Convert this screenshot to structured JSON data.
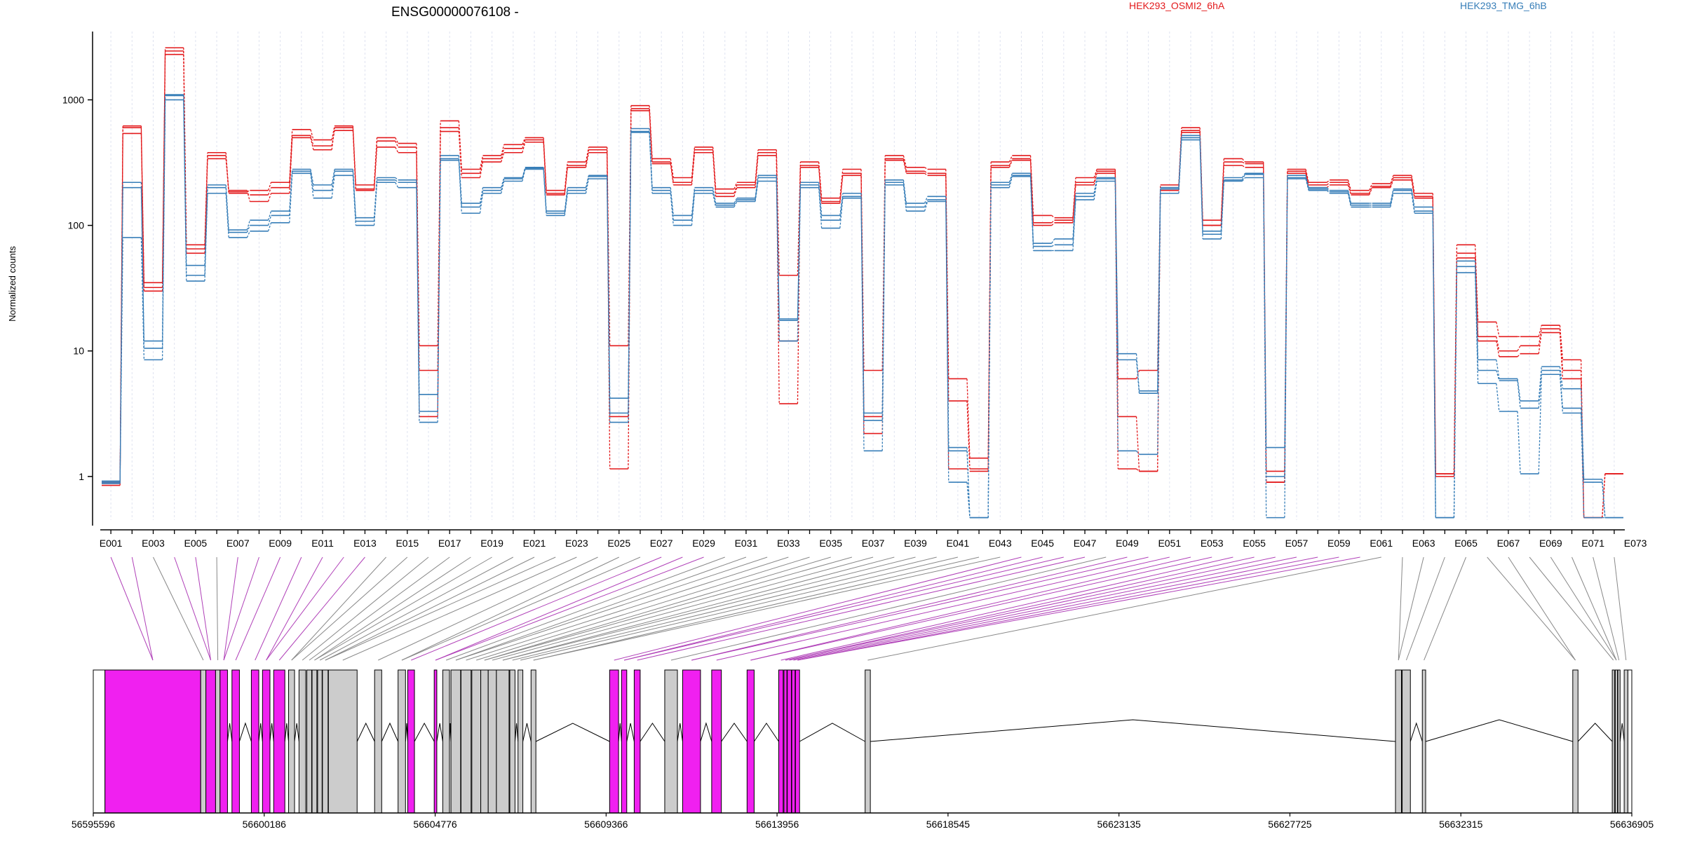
{
  "chart_data": {
    "type": "line",
    "title": "ENSG00000076108 -",
    "ylabel": "Normalized counts",
    "y_scale": "log",
    "ylim": [
      0.45,
      3500
    ],
    "y_ticks": [
      {
        "value": 1,
        "label": "1"
      },
      {
        "value": 10,
        "label": "10"
      },
      {
        "value": 100,
        "label": "100"
      },
      {
        "value": 1000,
        "label": "1000"
      }
    ],
    "legend": [
      {
        "name": "HEK293_OSMI2_6hA",
        "color": "#e31a1c"
      },
      {
        "name": "HEK293_TMG_6hB",
        "color": "#377eb8"
      }
    ],
    "exon_labels": [
      "E001",
      "E003",
      "E005",
      "E007",
      "E009",
      "E011",
      "E013",
      "E015",
      "E017",
      "E019",
      "E021",
      "E023",
      "E025",
      "E027",
      "E029",
      "E031",
      "E033",
      "E035",
      "E037",
      "E039",
      "E041",
      "E043",
      "E045",
      "E047",
      "E049",
      "E051",
      "E053",
      "E055",
      "E057",
      "E059",
      "E061",
      "E063",
      "E065",
      "E067",
      "E069",
      "E071",
      "E073"
    ],
    "series": [
      {
        "group": "HEK293_OSMI2_6hA",
        "values": [
          0.9,
          620,
          35,
          2600,
          70,
          380,
          185,
          190,
          220,
          580,
          480,
          620,
          210,
          500,
          450,
          11,
          680,
          280,
          360,
          440,
          500,
          190,
          320,
          420,
          11,
          900,
          340,
          240,
          420,
          195,
          220,
          400,
          40,
          320,
          165,
          280,
          7,
          360,
          290,
          280,
          6,
          1.4,
          320,
          360,
          120,
          115,
          240,
          280,
          6,
          7,
          210,
          600,
          110,
          340,
          320,
          1.1,
          280,
          220,
          230,
          190,
          215,
          250,
          180,
          1.05,
          70,
          17,
          13,
          13,
          16,
          8.5,
          0.47,
          1.05
        ]
      },
      {
        "group": "HEK293_OSMI2_6hA",
        "values": [
          0.88,
          540,
          32,
          2450,
          65,
          360,
          180,
          175,
          200,
          520,
          430,
          570,
          195,
          470,
          420,
          7,
          600,
          260,
          340,
          410,
          480,
          180,
          300,
          400,
          3,
          850,
          320,
          220,
          400,
          180,
          210,
          380,
          12,
          300,
          155,
          260,
          3,
          340,
          270,
          260,
          4,
          1.15,
          300,
          340,
          105,
          110,
          220,
          270,
          3,
          1.1,
          200,
          570,
          100,
          320,
          310,
          0.9,
          270,
          210,
          220,
          180,
          205,
          240,
          170,
          1.05,
          60,
          13,
          10,
          11,
          15,
          7,
          0.47,
          1.05
        ]
      },
      {
        "group": "HEK293_OSMI2_6hA",
        "values": [
          0.85,
          600,
          30,
          2300,
          60,
          340,
          190,
          155,
          180,
          500,
          400,
          600,
          190,
          420,
          380,
          3,
          560,
          240,
          320,
          380,
          460,
          175,
          290,
          380,
          1.15,
          820,
          310,
          210,
          380,
          170,
          200,
          360,
          3.8,
          290,
          150,
          250,
          2.2,
          330,
          260,
          250,
          1.15,
          1.1,
          290,
          330,
          100,
          105,
          210,
          260,
          1.15,
          1.1,
          190,
          550,
          100,
          300,
          290,
          0.9,
          260,
          200,
          210,
          175,
          200,
          230,
          165,
          1.0,
          55,
          12,
          9,
          9.5,
          14,
          6,
          0.47,
          1.05
        ]
      },
      {
        "group": "HEK293_TMG_6hB",
        "values": [
          0.92,
          220,
          12,
          1100,
          48,
          210,
          92,
          110,
          130,
          280,
          210,
          280,
          115,
          240,
          230,
          4.5,
          360,
          150,
          200,
          240,
          290,
          130,
          200,
          250,
          4.2,
          590,
          200,
          120,
          200,
          150,
          165,
          250,
          18,
          220,
          120,
          180,
          3.2,
          230,
          150,
          170,
          1.7,
          0.47,
          220,
          260,
          72,
          78,
          180,
          240,
          9.5,
          4.8,
          200,
          520,
          90,
          240,
          260,
          1.7,
          250,
          200,
          190,
          150,
          150,
          195,
          140,
          0.47,
          52,
          8.5,
          6,
          4,
          7.5,
          5,
          0.95,
          0.47
        ]
      },
      {
        "group": "HEK293_TMG_6hB",
        "values": [
          0.9,
          200,
          10.5,
          1080,
          40,
          200,
          88,
          100,
          120,
          270,
          190,
          270,
          108,
          230,
          220,
          3.3,
          340,
          140,
          190,
          235,
          285,
          125,
          190,
          245,
          3.2,
          560,
          190,
          110,
          190,
          145,
          160,
          240,
          17.5,
          210,
          110,
          170,
          2.8,
          220,
          140,
          160,
          1.6,
          0.47,
          210,
          250,
          68,
          70,
          170,
          235,
          8.5,
          4.6,
          195,
          500,
          85,
          230,
          255,
          1.0,
          240,
          195,
          185,
          145,
          145,
          190,
          130,
          0.47,
          47,
          7,
          5.8,
          3.5,
          7,
          3.5,
          0.9,
          0.47
        ]
      },
      {
        "group": "HEK293_TMG_6hB",
        "values": [
          0.88,
          80,
          8.5,
          1000,
          36,
          180,
          80,
          90,
          105,
          260,
          165,
          250,
          100,
          220,
          200,
          2.7,
          330,
          125,
          180,
          225,
          280,
          120,
          180,
          235,
          2.7,
          550,
          180,
          100,
          180,
          140,
          155,
          225,
          12,
          200,
          95,
          165,
          1.6,
          210,
          130,
          155,
          0.9,
          0.47,
          200,
          245,
          63,
          63,
          160,
          225,
          1.6,
          1.5,
          180,
          480,
          78,
          225,
          240,
          0.47,
          235,
          190,
          180,
          140,
          140,
          180,
          125,
          0.47,
          42,
          5.5,
          3.3,
          1.05,
          6.5,
          3.2,
          0.47,
          0.47
        ]
      }
    ],
    "x_ticks": [
      "56595596",
      "56600186",
      "56604776",
      "56609366",
      "56613956",
      "56618545",
      "56623135",
      "56627725",
      "56632315",
      "56636905"
    ],
    "gene_range": [
      56595596,
      56636905
    ],
    "exons": [
      {
        "start": 56595596,
        "end": 56595910,
        "color": "#ffffff"
      },
      {
        "start": 56595910,
        "end": 56598480,
        "color": "#f020f0"
      },
      {
        "start": 56598480,
        "end": 56598620,
        "color": "#cccccc"
      },
      {
        "start": 56598620,
        "end": 56598880,
        "color": "#f020f0"
      },
      {
        "start": 56598880,
        "end": 56599000,
        "color": "#cccccc"
      },
      {
        "start": 56599000,
        "end": 56599200,
        "color": "#f020f0"
      },
      {
        "start": 56599320,
        "end": 56599520,
        "color": "#f020f0"
      },
      {
        "start": 56599840,
        "end": 56600040,
        "color": "#f020f0"
      },
      {
        "start": 56600140,
        "end": 56600340,
        "color": "#f020f0"
      },
      {
        "start": 56600440,
        "end": 56600740,
        "color": "#f020f0"
      },
      {
        "start": 56600840,
        "end": 56601000,
        "color": "#cccccc"
      },
      {
        "start": 56601120,
        "end": 56601300,
        "color": "#cccccc"
      },
      {
        "start": 56601330,
        "end": 56601460,
        "color": "#cccccc"
      },
      {
        "start": 56601470,
        "end": 56601600,
        "color": "#cccccc"
      },
      {
        "start": 56601620,
        "end": 56601740,
        "color": "#cccccc"
      },
      {
        "start": 56601750,
        "end": 56601900,
        "color": "#cccccc"
      },
      {
        "start": 56601910,
        "end": 56602680,
        "color": "#cccccc"
      },
      {
        "start": 56603150,
        "end": 56603340,
        "color": "#cccccc"
      },
      {
        "start": 56603780,
        "end": 56603980,
        "color": "#cccccc"
      },
      {
        "start": 56604040,
        "end": 56604220,
        "color": "#f020f0"
      },
      {
        "start": 56604750,
        "end": 56604820,
        "color": "#f020f0"
      },
      {
        "start": 56604980,
        "end": 56605160,
        "color": "#cccccc"
      },
      {
        "start": 56605200,
        "end": 56605460,
        "color": "#cccccc"
      },
      {
        "start": 56605470,
        "end": 56605740,
        "color": "#cccccc"
      },
      {
        "start": 56605760,
        "end": 56606000,
        "color": "#cccccc"
      },
      {
        "start": 56606000,
        "end": 56606200,
        "color": "#cccccc"
      },
      {
        "start": 56606200,
        "end": 56606420,
        "color": "#cccccc"
      },
      {
        "start": 56606420,
        "end": 56606760,
        "color": "#cccccc"
      },
      {
        "start": 56606780,
        "end": 56606920,
        "color": "#cccccc"
      },
      {
        "start": 56607000,
        "end": 56607130,
        "color": "#cccccc"
      },
      {
        "start": 56607350,
        "end": 56607480,
        "color": "#cccccc"
      },
      {
        "start": 56609460,
        "end": 56609700,
        "color": "#f020f0"
      },
      {
        "start": 56609780,
        "end": 56609920,
        "color": "#f020f0"
      },
      {
        "start": 56610120,
        "end": 56610280,
        "color": "#f020f0"
      },
      {
        "start": 56610940,
        "end": 56611280,
        "color": "#cccccc"
      },
      {
        "start": 56611420,
        "end": 56611900,
        "color": "#f020f0"
      },
      {
        "start": 56612200,
        "end": 56612460,
        "color": "#f020f0"
      },
      {
        "start": 56613150,
        "end": 56613340,
        "color": "#f020f0"
      },
      {
        "start": 56614000,
        "end": 56614120,
        "color": "#f020f0"
      },
      {
        "start": 56614140,
        "end": 56614220,
        "color": "#f020f0"
      },
      {
        "start": 56614230,
        "end": 56614340,
        "color": "#f020f0"
      },
      {
        "start": 56614350,
        "end": 56614440,
        "color": "#f020f0"
      },
      {
        "start": 56614450,
        "end": 56614560,
        "color": "#f020f0"
      },
      {
        "start": 56616320,
        "end": 56616460,
        "color": "#cccccc"
      },
      {
        "start": 56630560,
        "end": 56630720,
        "color": "#cccccc"
      },
      {
        "start": 56630740,
        "end": 56630960,
        "color": "#cccccc"
      },
      {
        "start": 56631280,
        "end": 56631370,
        "color": "#cccccc"
      },
      {
        "start": 56635320,
        "end": 56635460,
        "color": "#cccccc"
      },
      {
        "start": 56636380,
        "end": 56636440,
        "color": "#cccccc"
      },
      {
        "start": 56636460,
        "end": 56636520,
        "color": "#cccccc"
      },
      {
        "start": 56636530,
        "end": 56636590,
        "color": "#cccccc"
      },
      {
        "start": 56636700,
        "end": 56636800,
        "color": "#cccccc"
      },
      {
        "start": 56636800,
        "end": 56636905,
        "color": "#ffffff"
      }
    ]
  }
}
